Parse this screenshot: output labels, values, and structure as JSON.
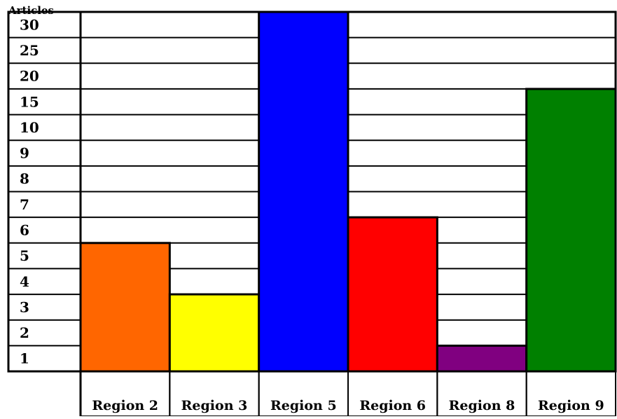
{
  "chart_data": {
    "type": "bar",
    "ylabel": "Articles",
    "y_ticks": [
      "1",
      "2",
      "3",
      "4",
      "5",
      "6",
      "7",
      "8",
      "9",
      "10",
      "15",
      "20",
      "25",
      "30"
    ],
    "y_scale": "non-uniform (each gridline band is one labeled step)",
    "grid": true,
    "legend": "none",
    "categories": [
      "Region 2",
      "Region 3",
      "Region 5",
      "Region 6",
      "Region 8",
      "Region 9"
    ],
    "values": [
      5,
      3,
      30,
      6,
      1,
      15
    ],
    "colors": [
      "#ff6600",
      "#ffff00",
      "#0000ff",
      "#ff0000",
      "#800080",
      "#008000"
    ]
  }
}
